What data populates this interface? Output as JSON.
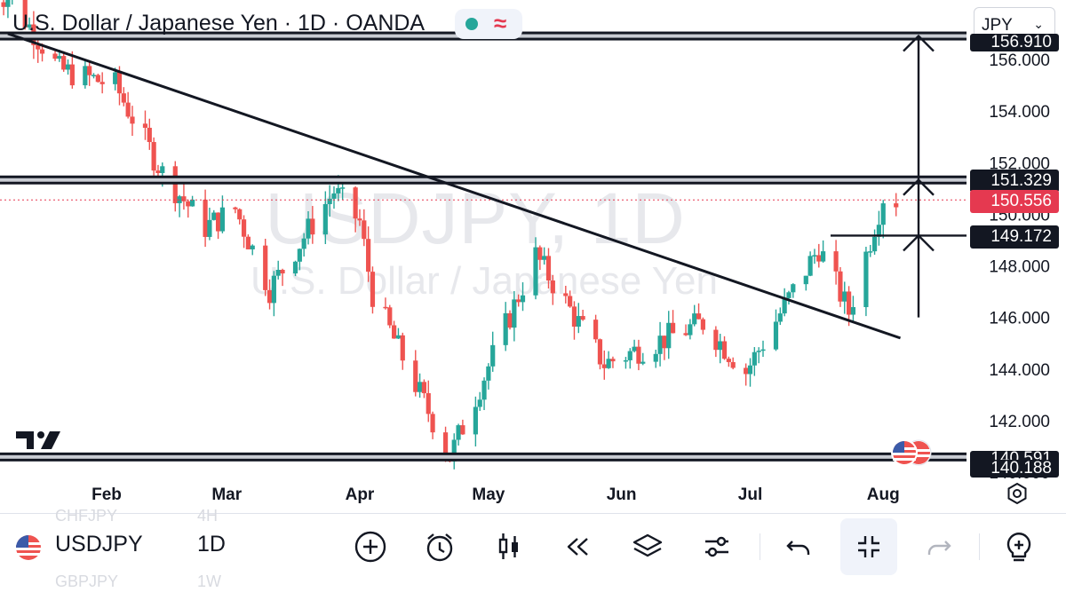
{
  "header": {
    "title": "U.S. Dollar / Japanese Yen · 1D · OANDA",
    "currency": "JPY",
    "watermark_symbol": "USDJPY, 1D",
    "watermark_name": "U.S. Dollar / Japanese Yen"
  },
  "price_tags": {
    "resistance": "151.329",
    "last_price": "150.556",
    "breakout": "149.172",
    "top_clipped": "156.910",
    "bottom_clipped": "140.591",
    "bottom": "140.188"
  },
  "colors": {
    "up": "#26a69a",
    "down": "#ef5350",
    "last_price": "#e53950",
    "tag_dark": "#131722"
  },
  "toolbar": {
    "symbol": "USDJPY",
    "interval": "1D",
    "ghost_above_symbol": "CHFJPY",
    "ghost_above_interval": "4H",
    "ghost_below_symbol": "GBPJPY",
    "ghost_below_interval": "1W",
    "icons": [
      "add-icon",
      "alarm-icon",
      "candles-icon",
      "replay-icon",
      "layers-icon",
      "settings-sliders-icon",
      "undo-icon",
      "fullscreen-exit-icon",
      "redo-icon",
      "idea-icon"
    ]
  },
  "chart_data": {
    "type": "candlestick",
    "title": "U.S. Dollar / Japanese Yen · 1D · OANDA",
    "symbol": "USDJPY",
    "x_months": [
      "Feb",
      "Mar",
      "Apr",
      "May",
      "Jun",
      "Jul",
      "Aug"
    ],
    "y_ticks": [
      "156.000",
      "154.000",
      "152.000",
      "150.000",
      "148.000",
      "146.000",
      "144.000",
      "142.000",
      "140.000"
    ],
    "ylim": [
      139.6,
      157.6
    ],
    "last_price": 150.556,
    "horizontal_levels": [
      156.91,
      151.329,
      140.591
    ],
    "breakout_level": 149.172,
    "trendline": [
      {
        "date": "2025-01-09",
        "price": 157.0
      },
      {
        "date": "2025-08-05",
        "price": 145.2
      }
    ],
    "key_points": [
      {
        "date": "2025-01-09",
        "price": 158.5
      },
      {
        "date": "2025-01-21",
        "price": 155.6
      },
      {
        "date": "2025-02-03",
        "price": 155.0
      },
      {
        "date": "2025-02-14",
        "price": 151.6
      },
      {
        "date": "2025-02-24",
        "price": 149.5
      },
      {
        "date": "2025-03-03",
        "price": 150.2
      },
      {
        "date": "2025-03-11",
        "price": 147.1
      },
      {
        "date": "2025-03-26",
        "price": 150.9
      },
      {
        "date": "2025-04-01",
        "price": 149.7
      },
      {
        "date": "2025-04-04",
        "price": 146.9
      },
      {
        "date": "2025-04-22",
        "price": 140.6
      },
      {
        "date": "2025-05-12",
        "price": 148.4
      },
      {
        "date": "2025-05-28",
        "price": 144.2
      },
      {
        "date": "2025-06-20",
        "price": 145.8
      },
      {
        "date": "2025-06-30",
        "price": 143.9
      },
      {
        "date": "2025-07-17",
        "price": 148.7
      },
      {
        "date": "2025-07-24",
        "price": 146.2
      },
      {
        "date": "2025-08-01",
        "price": 150.7
      },
      {
        "date": "2025-08-04",
        "price": 150.556
      }
    ]
  }
}
